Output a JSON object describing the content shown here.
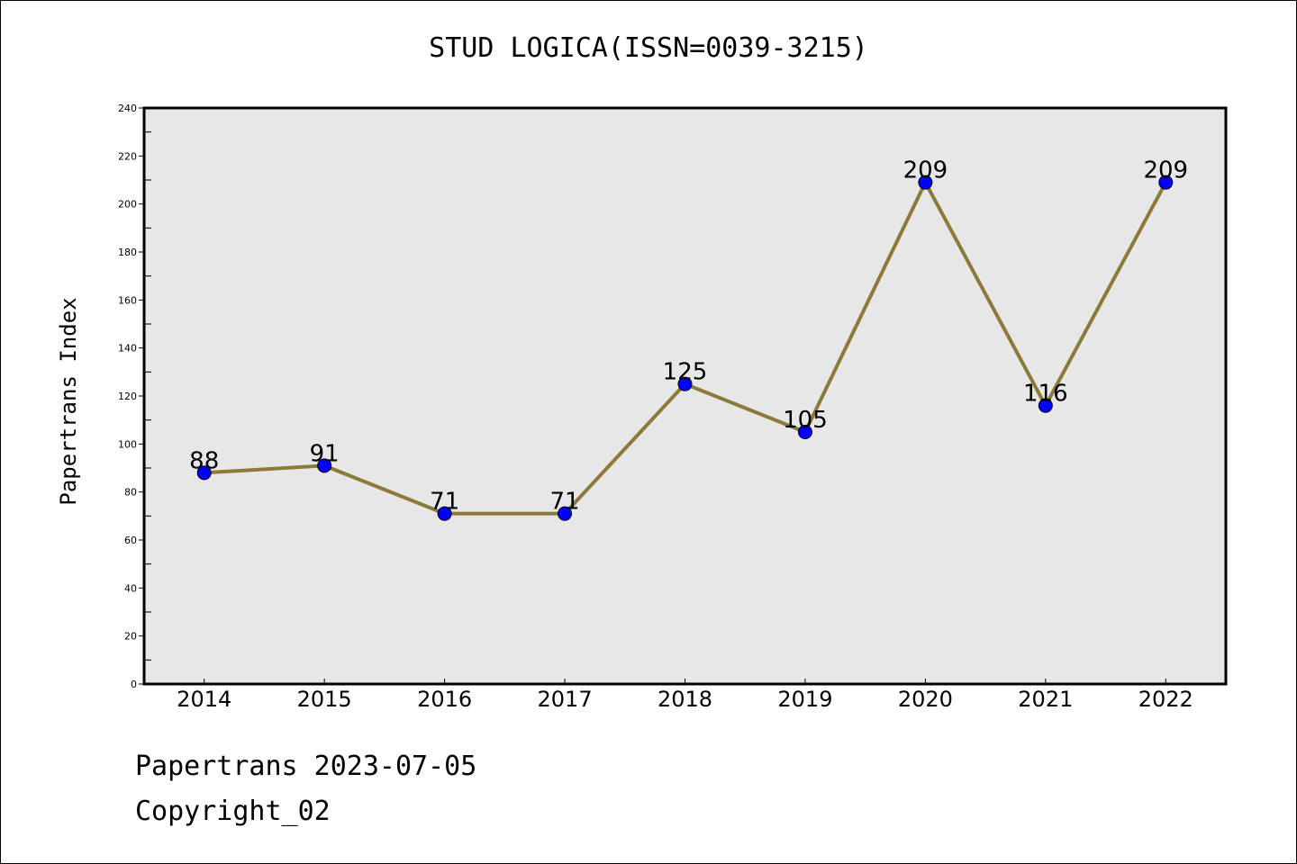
{
  "chart_data": {
    "type": "line",
    "title": "STUD LOGICA(ISSN=0039-3215)",
    "xlabel": "",
    "ylabel": "Papertrans Index",
    "categories": [
      "2014",
      "2015",
      "2016",
      "2017",
      "2018",
      "2019",
      "2020",
      "2021",
      "2022"
    ],
    "series": [
      {
        "values": [
          88,
          91,
          71,
          71,
          125,
          105,
          209,
          116,
          209
        ]
      }
    ],
    "data_labels": [
      "88",
      "91",
      "71",
      "71",
      "125",
      "105",
      "209",
      "116",
      "209"
    ],
    "ylim": [
      0,
      240
    ],
    "yticks": [
      "0",
      "20",
      "40",
      "60",
      "80",
      "100",
      "120",
      "140",
      "160",
      "180",
      "200",
      "220",
      "240"
    ],
    "grid": false,
    "line_color": "#8c7a3a",
    "marker_color": "#0000ff",
    "plot_background": "#e7e7e7"
  },
  "footer": {
    "line1": "Papertrans 2023-07-05",
    "line2": "Copyright_02"
  }
}
